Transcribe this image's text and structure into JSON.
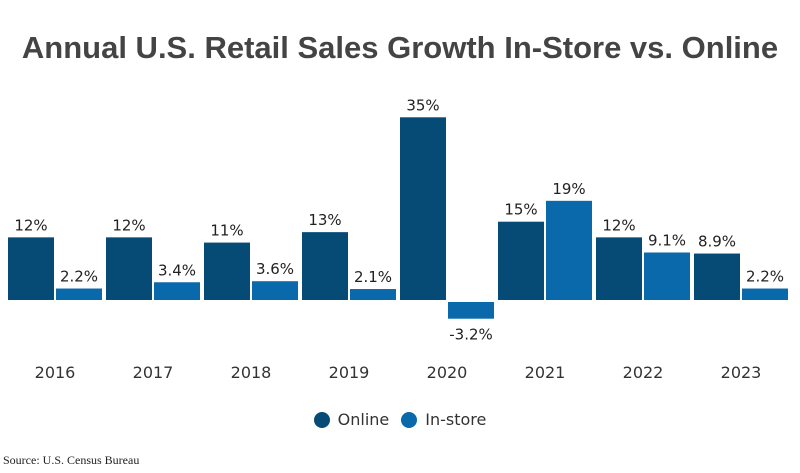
{
  "chart_data": {
    "type": "bar",
    "title": "Annual U.S. Retail Sales Growth In-Store vs. Online",
    "categories": [
      "2016",
      "2017",
      "2018",
      "2019",
      "2020",
      "2021",
      "2022",
      "2023"
    ],
    "series": [
      {
        "name": "Online",
        "color": "#064a76",
        "values": [
          12,
          12,
          11,
          13,
          35,
          15,
          12,
          8.9
        ],
        "labels": [
          "12%",
          "12%",
          "11%",
          "13%",
          "35%",
          "15%",
          "12%",
          "8.9%"
        ]
      },
      {
        "name": "In-store",
        "color": "#0a69ab",
        "values": [
          2.2,
          3.4,
          3.6,
          2.1,
          -3.2,
          19,
          9.1,
          2.2
        ],
        "labels": [
          "2.2%",
          "3.4%",
          "3.6%",
          "2.1%",
          "-3.2%",
          "19%",
          "9.1%",
          "2.2%"
        ]
      }
    ],
    "legend_position": "bottom",
    "grid": false,
    "source": "Source: U.S. Census Bureau"
  }
}
